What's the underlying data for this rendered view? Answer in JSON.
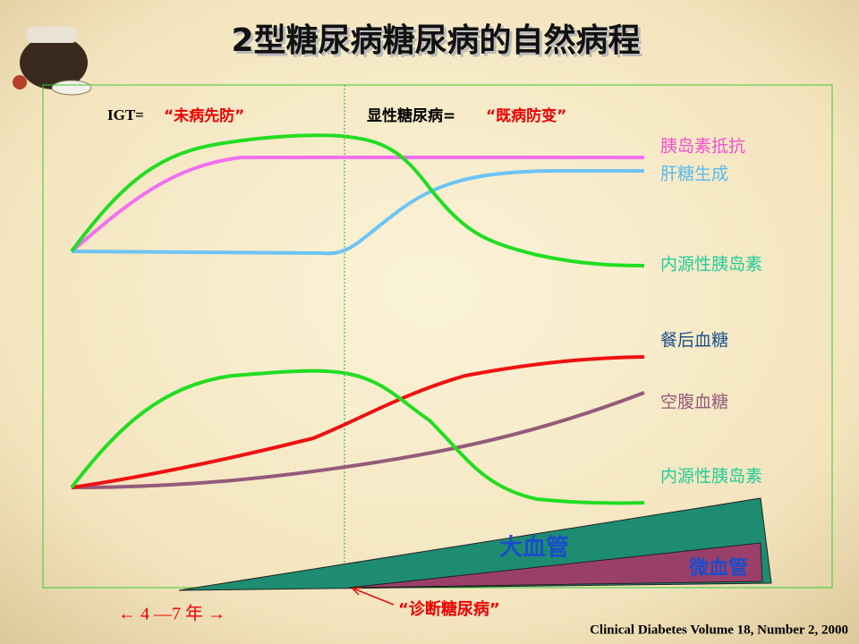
{
  "header": {
    "title": "2型糖尿病糖尿病的自然病程"
  },
  "phases": [
    {
      "label": "IGT=",
      "motto": "“未病先防”"
    },
    {
      "label": "显性糖尿病=",
      "motto": "“既病防变”"
    }
  ],
  "upper_labels": [
    "胰岛素抵抗",
    "肝糖生成",
    "内源性胰岛素"
  ],
  "lower_labels": [
    "餐后血糖",
    "空腹血糖",
    "内源性胰岛素"
  ],
  "complications": [
    "大血管",
    "微血管"
  ],
  "diagnosis": "“诊断糖尿病”",
  "duration": "← 4 —7 年 →",
  "citation": "Clinical Diabetes Volume 18, Number 2, 2000"
}
